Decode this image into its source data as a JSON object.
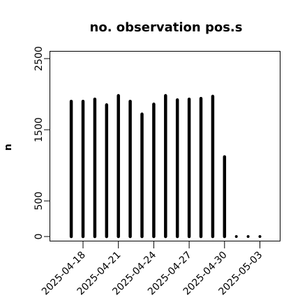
{
  "chart_data": {
    "type": "bar",
    "title": "no. observation pos.s",
    "xlabel": "",
    "ylabel": "n",
    "ylim": [
      0,
      2600
    ],
    "xlim": [
      "2025-04-15",
      "2025-05-04"
    ],
    "y_ticks": [
      0,
      500,
      1500,
      2500
    ],
    "x_ticks": [
      {
        "label": "2025-04-18",
        "color": "#000000"
      },
      {
        "label": "2025-04-21",
        "color": "#000000"
      },
      {
        "label": "2025-04-24",
        "color": "#228b22"
      },
      {
        "label": "2025-04-27",
        "color": "#000000"
      },
      {
        "label": "2025-04-30",
        "color": "#000000"
      },
      {
        "label": "2025-05-03",
        "color": "#000000"
      }
    ],
    "bar_color": "#000000",
    "grid": false,
    "series": [
      {
        "dates": [
          "2025-04-17",
          "2025-04-18",
          "2025-04-19",
          "2025-04-20",
          "2025-04-21",
          "2025-04-22",
          "2025-04-23",
          "2025-04-24",
          "2025-04-25",
          "2025-04-26",
          "2025-04-27",
          "2025-04-28",
          "2025-04-29",
          "2025-04-30",
          "2025-05-01",
          "2025-05-02",
          "2025-05-03"
        ],
        "values": [
          1900,
          1900,
          1930,
          1850,
          1980,
          1900,
          1720,
          1860,
          1980,
          1920,
          1930,
          1940,
          1970,
          1120,
          0,
          0,
          0
        ]
      }
    ]
  }
}
